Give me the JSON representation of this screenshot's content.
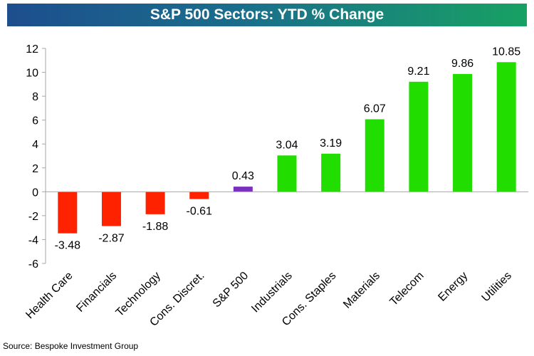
{
  "chart_data": {
    "type": "bar",
    "title": "S&P 500 Sectors: YTD % Change",
    "categories": [
      "Health Care",
      "Financials",
      "Technology",
      "Cons. Discret.",
      "S&P 500",
      "Industrials",
      "Cons. Staples",
      "Materials",
      "Telecom",
      "Energy",
      "Utilities"
    ],
    "values": [
      -3.48,
      -2.87,
      -1.88,
      -0.61,
      0.43,
      3.04,
      3.19,
      6.07,
      9.21,
      9.86,
      10.85
    ],
    "data_labels": [
      "-3.48",
      "-2.87",
      "-1.88",
      "-0.61",
      "0.43",
      "3.04",
      "3.19",
      "6.07",
      "9.21",
      "9.86",
      "10.85"
    ],
    "yticks": [
      "-6",
      "-4",
      "-2",
      "0",
      "2",
      "4",
      "6",
      "8",
      "10",
      "12"
    ],
    "ylim": [
      -6,
      12
    ],
    "xlabel": "",
    "ylabel": "",
    "grid": false,
    "legend": "none",
    "colors": {
      "negative": "#ff2200",
      "benchmark": "#7b2fbe",
      "positive": "#22dd00",
      "axis": "#a6a6a6"
    },
    "source": "Source: Bespoke Investment Group"
  }
}
